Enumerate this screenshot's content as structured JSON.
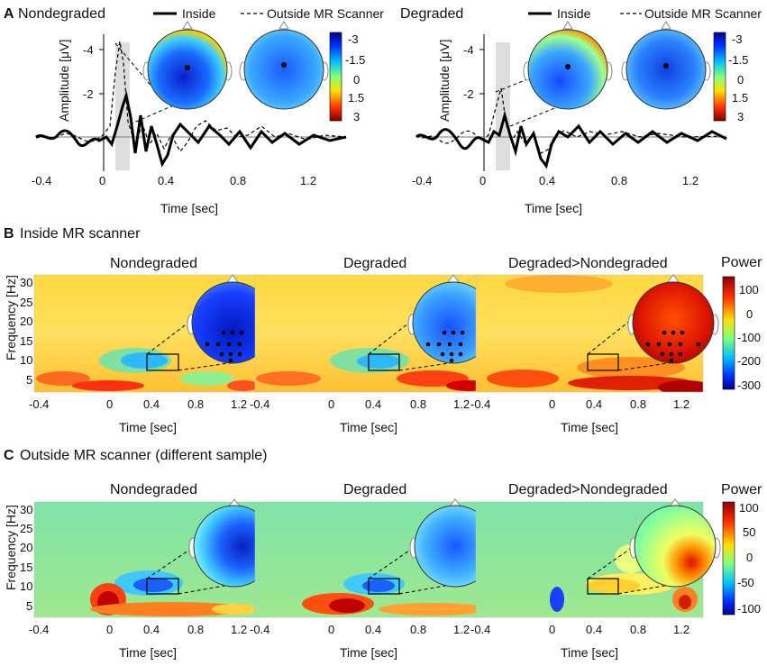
{
  "colors": {
    "hot": "#b00000",
    "cold": "#101080",
    "bg_warm": "#ffd83a",
    "bg_cool": "#7fe09a"
  },
  "panel_a": {
    "letter": "A",
    "legend_inside": "Inside",
    "legend_outside": "Outside MR Scanner",
    "ylabel": "Amplitude [μV]",
    "xlabel": "Time [sec]",
    "xticks": [
      "-0.4",
      "0",
      "0.4",
      "0.8",
      "1.2"
    ],
    "yticks": [
      "-4",
      "-2"
    ],
    "colorbar_ticks": [
      "-3",
      "-1.5",
      "0",
      "1.5",
      "3"
    ],
    "left": {
      "title": "Nondegraded"
    },
    "right": {
      "title": "Degraded"
    }
  },
  "panel_b": {
    "letter": "B",
    "title": "Inside MR scanner",
    "subplots": [
      {
        "title": "Nondegraded"
      },
      {
        "title": "Degraded"
      },
      {
        "title": "Degraded>Nondegraded"
      }
    ],
    "ylabel": "Frequency [Hz]",
    "yticks": [
      "30",
      "25",
      "20",
      "15",
      "10",
      "5"
    ],
    "xticks": [
      "-0.4",
      "0",
      "0.4",
      "0.8",
      "1.2"
    ],
    "xlabel": "Time [sec]",
    "colorbar_title": "Power",
    "colorbar_ticks": [
      "100",
      "0",
      "-100",
      "-200",
      "-300"
    ]
  },
  "panel_c": {
    "letter": "C",
    "title": "Outside MR scanner (different sample)",
    "subplots": [
      {
        "title": "Nondegraded"
      },
      {
        "title": "Degraded"
      },
      {
        "title": "Degraded>Nondegraded"
      }
    ],
    "ylabel": "Frequency [Hz]",
    "yticks": [
      "30",
      "25",
      "20",
      "15",
      "10",
      "5"
    ],
    "xticks": [
      "-0.4",
      "0",
      "0.4",
      "0.8",
      "1.2"
    ],
    "xlabel": "Time [sec]",
    "colorbar_title": "Power",
    "colorbar_ticks": [
      "100",
      "50",
      "0",
      "-50",
      "-100"
    ]
  }
}
